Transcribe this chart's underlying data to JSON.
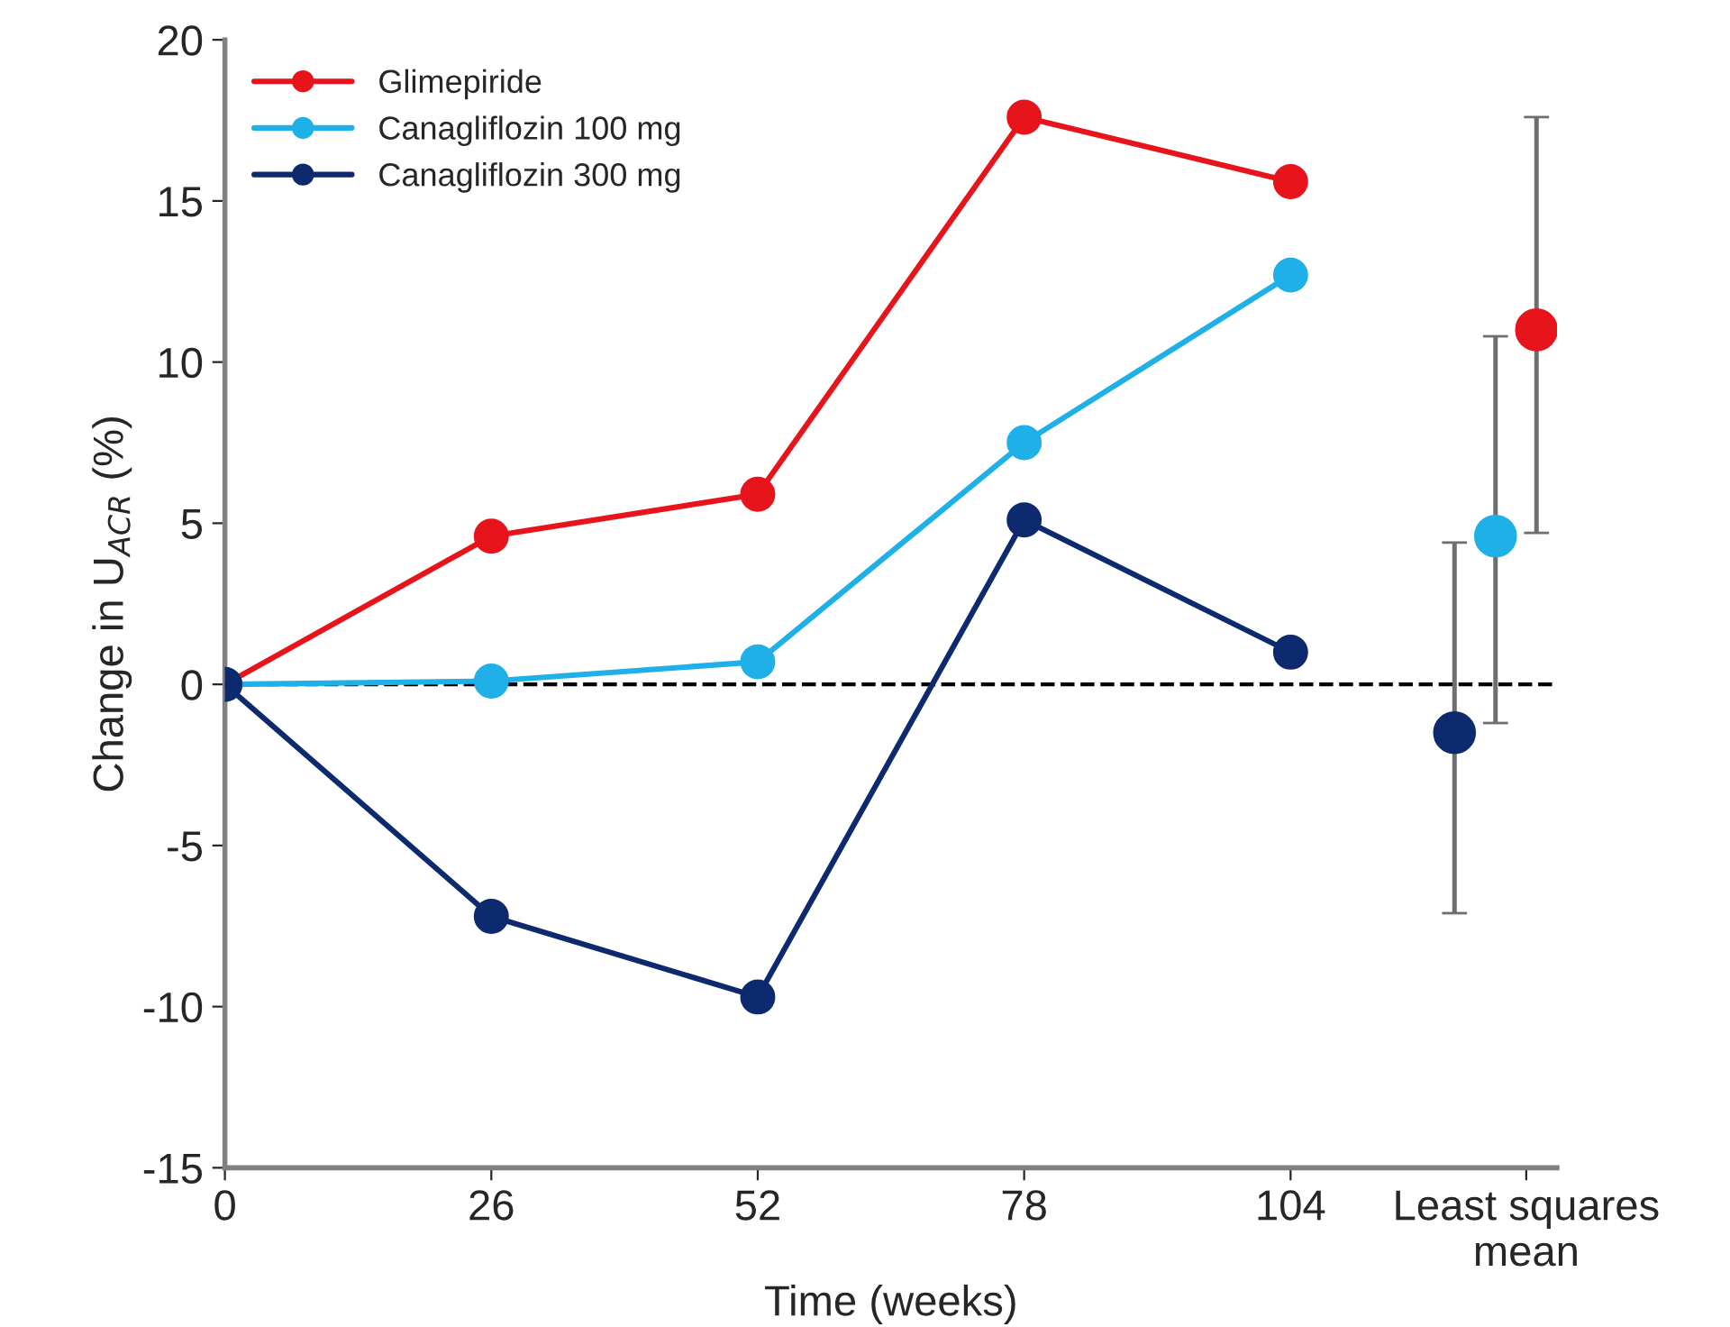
{
  "chart_data": {
    "type": "line",
    "xlabel": "Time (weeks)",
    "ylabel": "Change in U$_{ACR}$ (%)",
    "xlim": [
      0,
      130
    ],
    "xticks": [
      0,
      26,
      52,
      78,
      104,
      {
        "value": 127,
        "label": "Least squares\nmean"
      }
    ],
    "ylim": [
      -15,
      20
    ],
    "yticks": [
      -15,
      -10,
      -5,
      0,
      5,
      10,
      15,
      20
    ],
    "grid": false,
    "legend": "top left",
    "marker": "circle",
    "line_style": "solid",
    "ref_lines": [
      {
        "axis": "y",
        "value": 0,
        "line_style": "dashed",
        "color": "#000000"
      }
    ],
    "series": [
      {
        "name": "Glimepiride",
        "color": "#e8141c",
        "x": [
          0,
          26,
          52,
          78,
          104
        ],
        "values": [
          0,
          4.6,
          5.9,
          17.6,
          15.6
        ]
      },
      {
        "name": "Canagliflozin 100 mg",
        "color": "#20b0e8",
        "x": [
          0,
          26,
          52,
          78,
          104
        ],
        "values": [
          0,
          0.1,
          0.7,
          7.5,
          12.7
        ]
      },
      {
        "name": "Canagliflozin 300 mg",
        "color": "#0d2a6e",
        "x": [
          0,
          26,
          52,
          78,
          104
        ],
        "values": [
          0,
          -7.2,
          -9.7,
          5.1,
          1.0
        ]
      },
      {
        "type": "scatter",
        "color": "#0d2a6e",
        "x": [
          120
        ],
        "values": [
          -1.5
        ],
        "errors": [
          [
            -7.1,
            4.4
          ]
        ]
      },
      {
        "type": "scatter",
        "color": "#20b0e8",
        "x": [
          124
        ],
        "values": [
          4.6
        ],
        "errors": [
          [
            -1.2,
            10.8
          ]
        ]
      },
      {
        "type": "scatter",
        "color": "#e8141c",
        "x": [
          128
        ],
        "values": [
          11.0
        ],
        "errors": [
          [
            4.7,
            17.6
          ]
        ]
      }
    ]
  }
}
